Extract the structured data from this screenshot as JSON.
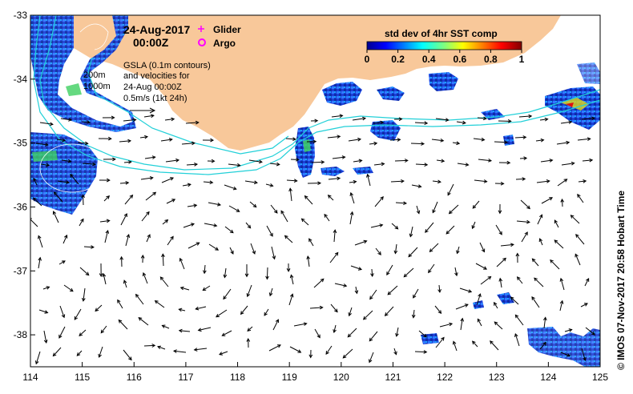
{
  "map": {
    "lon_range": [
      114,
      125
    ],
    "lat_range": [
      -38.5,
      -33
    ],
    "x_ticks": [
      114,
      115,
      116,
      117,
      118,
      119,
      120,
      121,
      122,
      123,
      124,
      125
    ],
    "y_ticks": [
      -33,
      -34,
      -35,
      -36,
      -37,
      -38
    ],
    "land_color": "#f8c89a",
    "contour_color": "#22d0d8"
  },
  "header": {
    "date": "24-Aug-2017",
    "time": "00:00Z"
  },
  "legend": {
    "glider_label": "Glider",
    "argo_label": "Argo",
    "glider_color": "#ff00ff",
    "argo_color": "#ff00ff"
  },
  "info": {
    "line1": "GSLA (0.1m contours)",
    "line2": "and velocities for",
    "line3": "24-Aug 00:00Z",
    "line4": "0.5m/s (1kt 24h)",
    "depth_200": "200m",
    "depth_1000": "1000m"
  },
  "colorbar": {
    "title": "std dev of 4hr SST comp",
    "ticks": [
      "0",
      "0.2",
      "0.4",
      "0.6",
      "0.8",
      "1"
    ]
  },
  "credit": "© IMOS 07-Nov-2017 20:58 Hobart Time"
}
